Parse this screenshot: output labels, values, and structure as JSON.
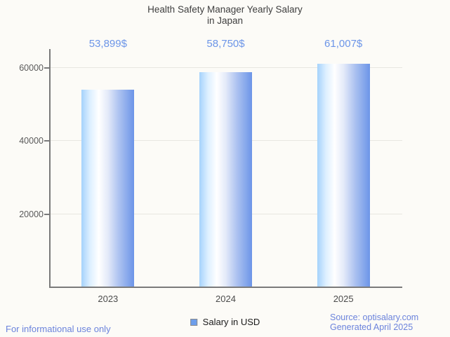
{
  "title": {
    "line1": "Health Safety Manager Yearly Salary",
    "line2": "in Japan"
  },
  "chart_data": {
    "type": "bar",
    "title": "Health Safety Manager Yearly Salary in Japan",
    "categories": [
      "2023",
      "2024",
      "2025"
    ],
    "series": [
      {
        "name": "Salary in USD",
        "values": [
          53899,
          58750,
          61007
        ]
      }
    ],
    "value_labels": [
      "53,899$",
      "58,750$",
      "61,007$"
    ],
    "xlabel": "",
    "ylabel": "",
    "ylim": [
      0,
      65000
    ],
    "yticks": [
      20000,
      40000,
      60000
    ],
    "ytick_labels": [
      "20000",
      "40000",
      "60000"
    ],
    "grid": true,
    "legend_position": "bottom"
  },
  "legend": {
    "label": "Salary in USD"
  },
  "footer": {
    "left": "For informational use only",
    "source": "Source: optisalary.com",
    "generated": "Generated April 2025"
  },
  "colors": {
    "background": "#fcfbf7",
    "title": "#3f3f3f",
    "value_label": "#6c95e8",
    "axis": "#7a7a7a",
    "gridline": "#e8e7e1",
    "tick_label": "#5a5a5a",
    "x_label": "#4c4c4c",
    "bar_left": "#a5d2fc",
    "bar_mid": "#ffffff",
    "bar_right": "#6c95e8",
    "legend_swatch": "#6d9eeb",
    "legend_swatch_border": "#8c8c8c",
    "footer_text": "#6b83dc"
  }
}
